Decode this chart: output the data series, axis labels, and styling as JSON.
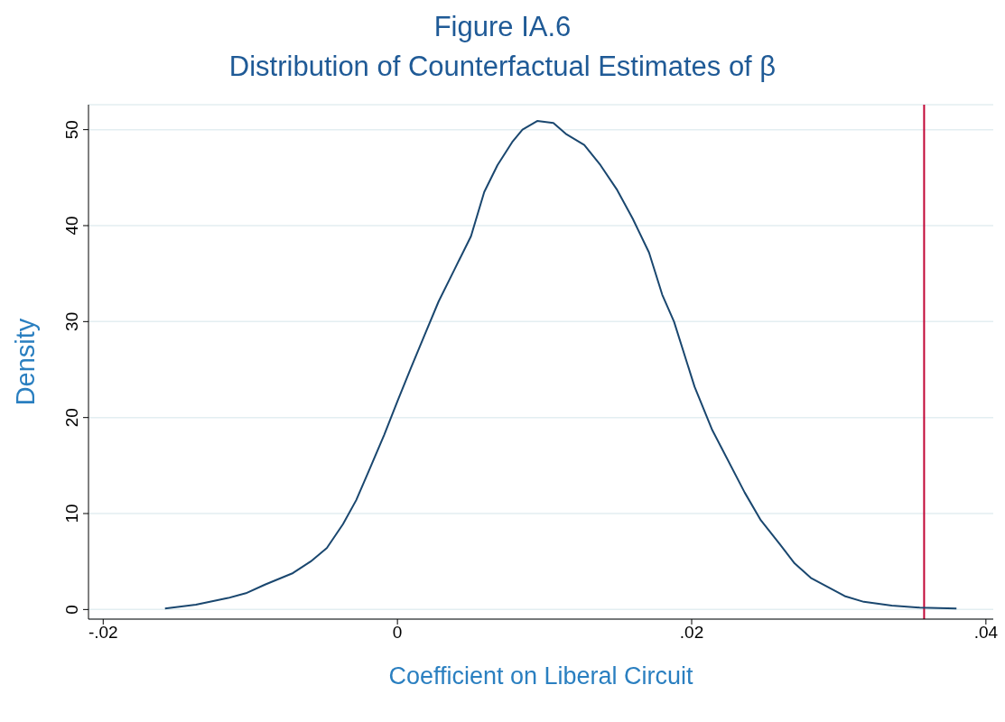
{
  "chart_data": {
    "type": "line",
    "title": "Figure IA.6",
    "subtitle": "Distribution of Counterfactual Estimates of β",
    "xlabel": "Coefficient on Liberal Circuit",
    "ylabel": "Density",
    "x": [
      -0.0158,
      -0.0137,
      -0.0115,
      -0.0103,
      -0.009,
      -0.0071,
      -0.0059,
      -0.0048,
      -0.0037,
      -0.0028,
      -0.0019,
      -0.0009,
      0,
      0.0009,
      0.0019,
      0.0028,
      0.0039,
      0.005,
      0.0059,
      0.0068,
      0.0078,
      0.0085,
      0.0095,
      0.0106,
      0.0115,
      0.0127,
      0.0138,
      0.0149,
      0.016,
      0.0171,
      0.018,
      0.0188,
      0.0202,
      0.0214,
      0.0236,
      0.0247,
      0.026,
      0.027,
      0.0281,
      0.0304,
      0.0317,
      0.0336,
      0.0355,
      0.038
    ],
    "series": [
      {
        "color": "#1a476f",
        "values": [
          0.1,
          0.5,
          1.2,
          1.7,
          2.6,
          3.8,
          5,
          6.4,
          8.9,
          11.4,
          14.6,
          18.2,
          21.7,
          25.1,
          28.8,
          32.1,
          35.5,
          38.9,
          43.5,
          46.3,
          48.7,
          50,
          50.9,
          50.7,
          49.5,
          48.4,
          46.3,
          43.8,
          40.7,
          37.2,
          32.8,
          30,
          23.2,
          18.7,
          12.2,
          9.3,
          6.8,
          4.8,
          3.3,
          1.4,
          0.8,
          0.4,
          0.2,
          0.1
        ]
      }
    ],
    "xlim": [
      -0.021,
      0.0405
    ],
    "xticks": [
      {
        "value": -0.02,
        "label": "-.02"
      },
      {
        "value": 0,
        "label": "0"
      },
      {
        "value": 0.02,
        "label": ".02"
      },
      {
        "value": 0.04,
        "label": ".04"
      }
    ],
    "ylim": [
      -1,
      52.6
    ],
    "yticks": [
      0,
      10,
      20,
      30,
      40,
      50
    ],
    "ref_lines": [
      {
        "axis": "x",
        "value": 0.0358,
        "color": "#c10534"
      }
    ],
    "grid": "y",
    "legend": false,
    "marker": "none",
    "line_style": "solid"
  }
}
